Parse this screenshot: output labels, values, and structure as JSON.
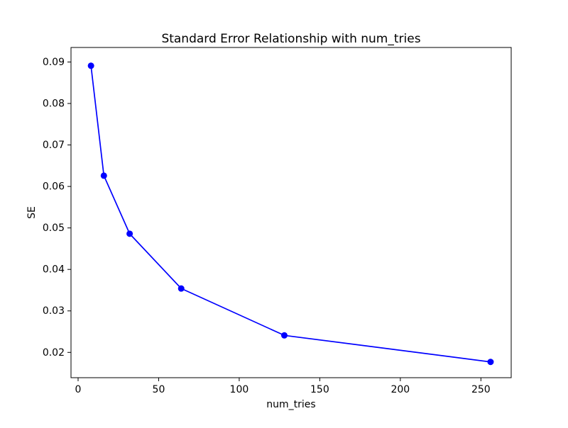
{
  "figure": {
    "background": "#ffffff"
  },
  "chart_data": {
    "type": "line",
    "title": "Standard Error Relationship with num_tries",
    "xlabel": "num_tries",
    "ylabel": "SE",
    "series": [
      {
        "name": "SE vs num_tries",
        "color": "#0000ff",
        "marker": "circle",
        "x": [
          8,
          16,
          32,
          64,
          128,
          256
        ],
        "y": [
          0.0891,
          0.0626,
          0.0486,
          0.0354,
          0.0241,
          0.0177
        ]
      }
    ],
    "xlim": [
      -4.4,
      268.8
    ],
    "ylim": [
      0.0139,
      0.0935
    ],
    "xticks": [
      0,
      50,
      100,
      150,
      200,
      250
    ],
    "xtick_labels": [
      "0",
      "50",
      "100",
      "150",
      "200",
      "250"
    ],
    "yticks": [
      0.02,
      0.03,
      0.04,
      0.05,
      0.06,
      0.07,
      0.08,
      0.09
    ],
    "ytick_labels": [
      "0.02",
      "0.03",
      "0.04",
      "0.05",
      "0.06",
      "0.07",
      "0.08",
      "0.09"
    ],
    "grid": false,
    "legend_position": "none",
    "spine_color": "#000000",
    "tick_color": "#000000"
  }
}
